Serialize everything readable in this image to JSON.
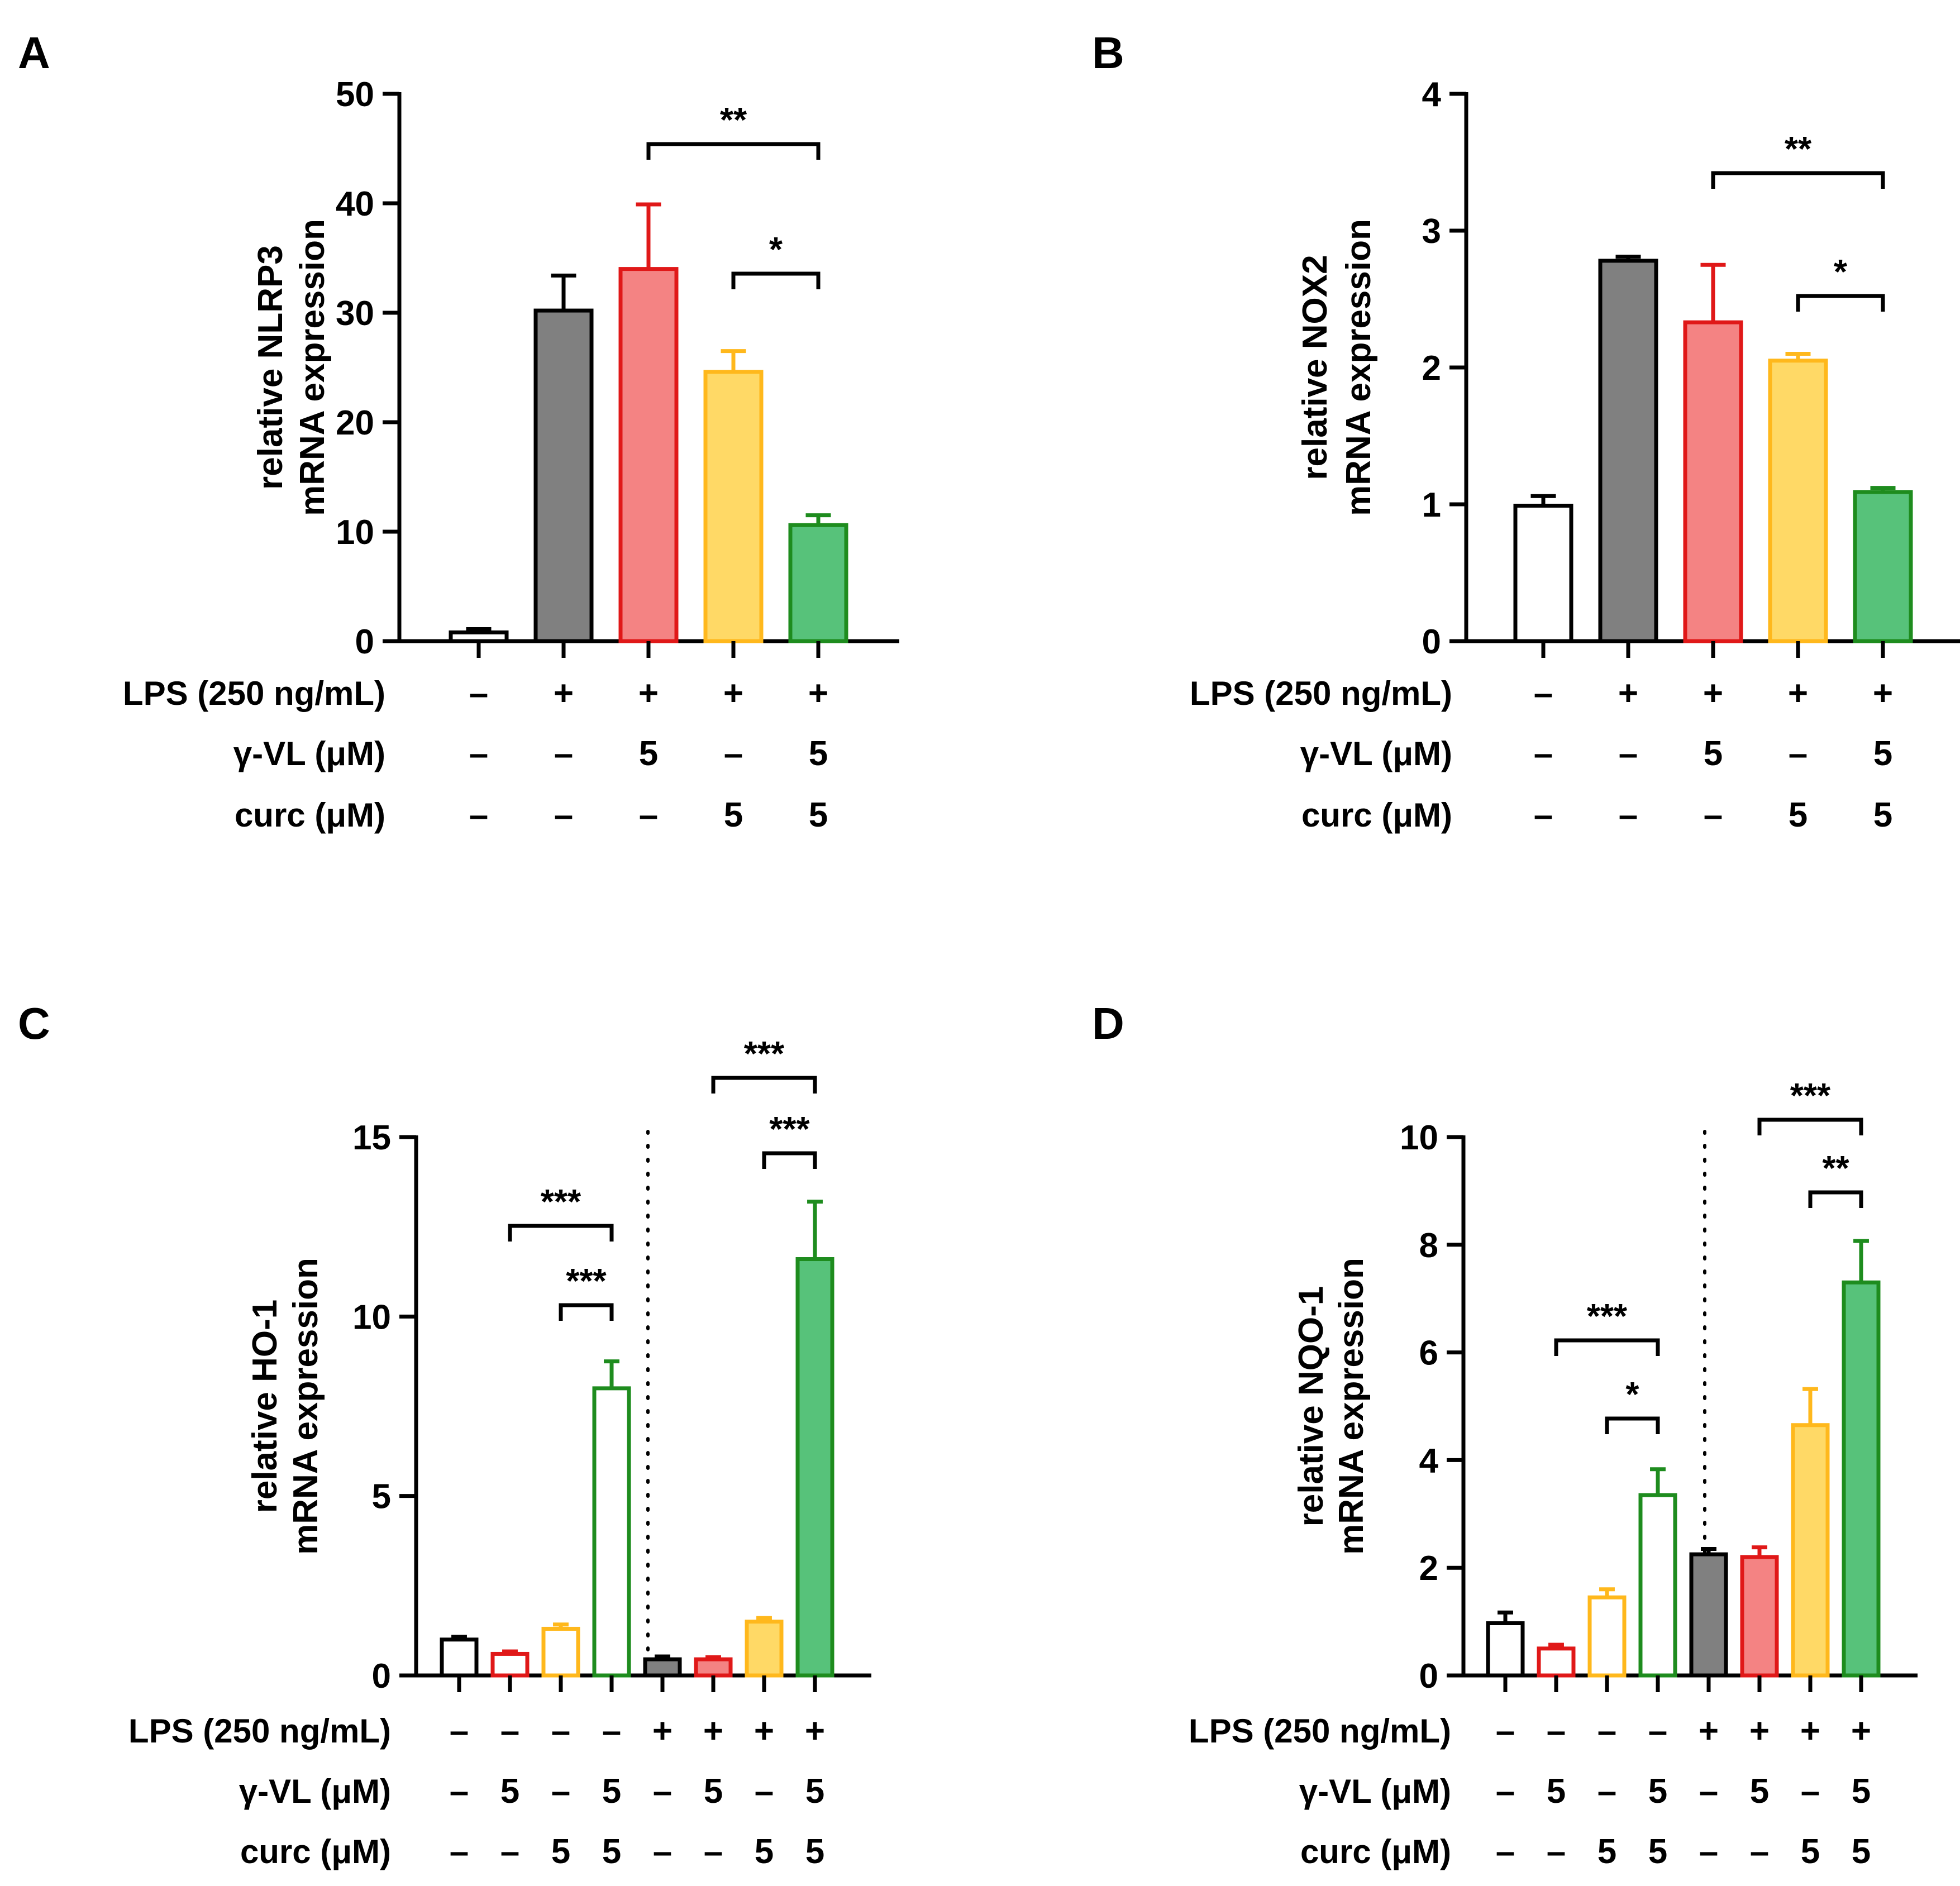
{
  "colors": {
    "white": "#ffffff",
    "black": "#000000",
    "gray_fill": "#808080",
    "red_fill": "#f48383",
    "red_stroke": "#e01818",
    "yellow_fill": "#ffd966",
    "yellow_stroke": "#ffb81c",
    "green_fill": "#57c27a",
    "green_stroke": "#1e8c1e"
  },
  "chart_data": [
    {
      "panel": "A",
      "type": "bar",
      "ylabel_line1": "relative NLRP3",
      "ylabel_line2": "mRNA expression",
      "ylim": [
        0,
        50
      ],
      "yticks": [
        "0",
        "10",
        "20",
        "30",
        "40",
        "50"
      ],
      "categories": [
        "ctrl",
        "LPS",
        "LPS+γ-VL",
        "LPS+curc",
        "LPS+γ-VL+curc"
      ],
      "values": [
        0.8,
        30.2,
        34.0,
        24.6,
        10.6
      ],
      "errors": [
        0.3,
        3.2,
        5.9,
        1.9,
        0.9
      ],
      "styles": [
        "white",
        "gray",
        "red",
        "yellow",
        "green"
      ],
      "separator": false,
      "significance": [
        {
          "from": 2,
          "to": 4,
          "label": "**"
        },
        {
          "from": 3,
          "to": 4,
          "label": "*"
        }
      ],
      "treatments": [
        {
          "label": "LPS (250 ng/mL)",
          "values": [
            "–",
            "+",
            "+",
            "+",
            "+"
          ]
        },
        {
          "label": "γ-VL (μM)",
          "values": [
            "–",
            "–",
            "5",
            "–",
            "5"
          ]
        },
        {
          "label": "curc (μM)",
          "values": [
            "–",
            "–",
            "–",
            "5",
            "5"
          ]
        }
      ]
    },
    {
      "panel": "B",
      "type": "bar",
      "ylabel_line1": "relative NOX2",
      "ylabel_line2": "mRNA expression",
      "ylim": [
        0,
        4
      ],
      "yticks": [
        "0",
        "1",
        "2",
        "3",
        "4"
      ],
      "categories": [
        "ctrl",
        "LPS",
        "LPS+γ-VL",
        "LPS+curc",
        "LPS+γ-VL+curc"
      ],
      "values": [
        0.99,
        2.78,
        2.33,
        2.05,
        1.09
      ],
      "errors": [
        0.07,
        0.03,
        0.42,
        0.05,
        0.03
      ],
      "styles": [
        "white",
        "gray",
        "red",
        "yellow",
        "green"
      ],
      "separator": false,
      "significance": [
        {
          "from": 2,
          "to": 4,
          "label": "**"
        },
        {
          "from": 3,
          "to": 4,
          "label": "*"
        }
      ],
      "treatments": [
        {
          "label": "LPS (250 ng/mL)",
          "values": [
            "–",
            "+",
            "+",
            "+",
            "+"
          ]
        },
        {
          "label": "γ-VL (μM)",
          "values": [
            "–",
            "–",
            "5",
            "–",
            "5"
          ]
        },
        {
          "label": "curc (μM)",
          "values": [
            "–",
            "–",
            "–",
            "5",
            "5"
          ]
        }
      ]
    },
    {
      "panel": "C",
      "type": "bar",
      "ylabel_line1": "relative HO-1",
      "ylabel_line2": "mRNA expression",
      "ylim": [
        0,
        15
      ],
      "yticks": [
        "0",
        "5",
        "10",
        "15"
      ],
      "categories": [
        "ctrl",
        "γ-VL",
        "curc",
        "γ-VL+curc",
        "LPS",
        "LPS+γ-VL",
        "LPS+curc",
        "LPS+γ-VL+curc"
      ],
      "values": [
        1.0,
        0.6,
        1.3,
        8.0,
        0.45,
        0.45,
        1.5,
        11.6
      ],
      "errors": [
        0.08,
        0.07,
        0.12,
        0.75,
        0.08,
        0.06,
        0.1,
        1.6
      ],
      "styles": [
        "white",
        "white-red",
        "white-yellow",
        "white-green",
        "gray",
        "red",
        "yellow",
        "green"
      ],
      "separator": true,
      "significance": [
        {
          "from": 1,
          "to": 3,
          "label": "***"
        },
        {
          "from": 2,
          "to": 3,
          "label": "***"
        },
        {
          "from": 5,
          "to": 7,
          "label": "***"
        },
        {
          "from": 6,
          "to": 7,
          "label": "***"
        }
      ],
      "treatments": [
        {
          "label": "LPS (250 ng/mL)",
          "values": [
            "–",
            "–",
            "–",
            "–",
            "+",
            "+",
            "+",
            "+"
          ]
        },
        {
          "label": "γ-VL (μM)",
          "values": [
            "–",
            "5",
            "–",
            "5",
            "–",
            "5",
            "–",
            "5"
          ]
        },
        {
          "label": "curc (μM)",
          "values": [
            "–",
            "–",
            "5",
            "5",
            "–",
            "–",
            "5",
            "5"
          ]
        }
      ]
    },
    {
      "panel": "D",
      "type": "bar",
      "ylabel_line1": "relative NQO-1",
      "ylabel_line2": "mRNA expression",
      "ylim": [
        0,
        10
      ],
      "yticks": [
        "0",
        "2",
        "4",
        "6",
        "8",
        "10"
      ],
      "categories": [
        "ctrl",
        "γ-VL",
        "curc",
        "γ-VL+curc",
        "LPS",
        "LPS+γ-VL",
        "LPS+curc",
        "LPS+γ-VL+curc"
      ],
      "values": [
        0.97,
        0.5,
        1.45,
        3.35,
        2.25,
        2.2,
        4.65,
        7.3
      ],
      "errors": [
        0.2,
        0.07,
        0.15,
        0.48,
        0.1,
        0.18,
        0.67,
        0.77
      ],
      "styles": [
        "white",
        "white-red",
        "white-yellow",
        "white-green",
        "gray",
        "red",
        "yellow",
        "green"
      ],
      "separator": true,
      "significance": [
        {
          "from": 1,
          "to": 3,
          "label": "***"
        },
        {
          "from": 2,
          "to": 3,
          "label": "*"
        },
        {
          "from": 5,
          "to": 7,
          "label": "***"
        },
        {
          "from": 6,
          "to": 7,
          "label": "**"
        }
      ],
      "treatments": [
        {
          "label": "LPS (250 ng/mL)",
          "values": [
            "–",
            "–",
            "–",
            "–",
            "+",
            "+",
            "+",
            "+"
          ]
        },
        {
          "label": "γ-VL (μM)",
          "values": [
            "–",
            "5",
            "–",
            "5",
            "–",
            "5",
            "–",
            "5"
          ]
        },
        {
          "label": "curc (μM)",
          "values": [
            "–",
            "–",
            "5",
            "5",
            "–",
            "–",
            "5",
            "5"
          ]
        }
      ]
    }
  ]
}
